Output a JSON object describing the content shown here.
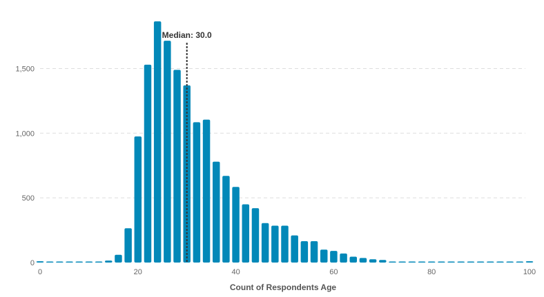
{
  "chart_data": {
    "type": "bar",
    "title": "",
    "xlabel": "Count of Respondents Age",
    "ylabel": "",
    "xlim": [
      0,
      100
    ],
    "ylim": [
      0,
      1870
    ],
    "x_ticks": [
      "0",
      "20",
      "40",
      "60",
      "80",
      "100"
    ],
    "y_ticks": [
      "0",
      "500",
      "1,000",
      "1,500"
    ],
    "bar_color": "#0288b8",
    "grid": true,
    "median": {
      "value": 30,
      "label": "Median: 30.0"
    },
    "bin_starts": [
      0,
      2,
      4,
      6,
      8,
      10,
      12,
      14,
      16,
      18,
      20,
      22,
      24,
      26,
      28,
      30,
      32,
      34,
      36,
      38,
      40,
      42,
      44,
      46,
      48,
      50,
      52,
      54,
      56,
      58,
      60,
      62,
      64,
      66,
      68,
      70,
      72,
      74,
      76,
      78,
      80,
      82,
      84,
      86,
      88,
      90,
      92,
      94,
      96,
      98,
      100
    ],
    "values": [
      10,
      2,
      2,
      2,
      2,
      2,
      2,
      15,
      60,
      265,
      975,
      1530,
      1865,
      1715,
      1490,
      1370,
      1085,
      1105,
      780,
      670,
      585,
      450,
      420,
      305,
      285,
      285,
      210,
      165,
      165,
      100,
      90,
      70,
      45,
      35,
      25,
      20,
      8,
      5,
      4,
      3,
      2,
      2,
      1,
      1,
      1,
      1,
      1,
      1,
      1,
      3,
      10
    ]
  }
}
